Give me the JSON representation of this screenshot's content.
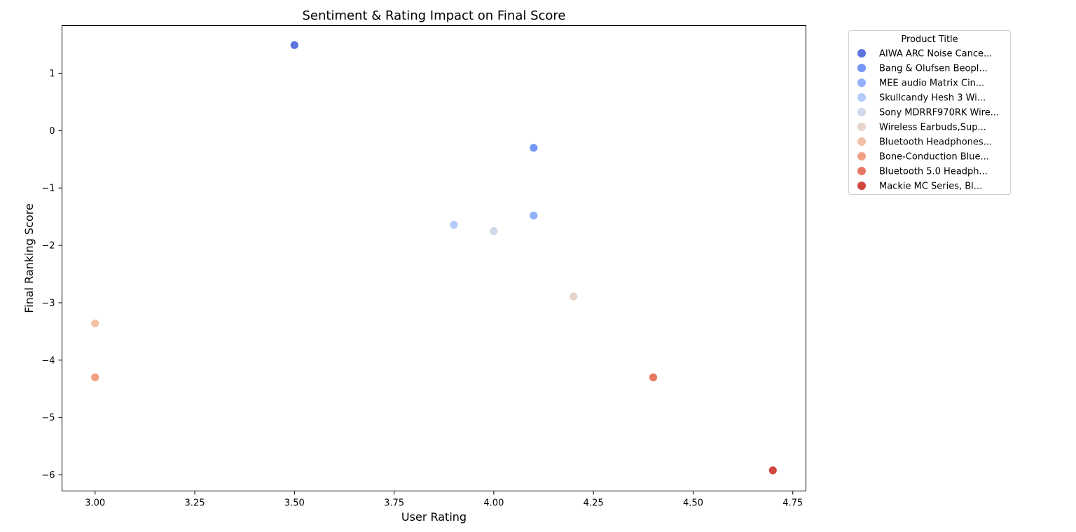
{
  "chart_data": {
    "type": "scatter",
    "title": "Sentiment & Rating Impact on Final Score",
    "xlabel": "User Rating",
    "ylabel": "Final Ranking Score",
    "xlim": [
      2.917,
      4.783
    ],
    "ylim": [
      -6.28,
      1.83
    ],
    "xticks": [
      3.0,
      3.25,
      3.5,
      3.75,
      4.0,
      4.25,
      4.5,
      4.75
    ],
    "xtick_labels": [
      "3.00",
      "3.25",
      "3.50",
      "3.75",
      "4.00",
      "4.25",
      "4.50",
      "4.75"
    ],
    "yticks": [
      1,
      0,
      -1,
      -2,
      -3,
      -4,
      -5,
      -6
    ],
    "ytick_labels": [
      "1",
      "0",
      "−1",
      "−2",
      "−3",
      "−4",
      "−5",
      "−6"
    ],
    "grid": false,
    "legend": {
      "title": "Product Title",
      "position": "outside-top-right"
    },
    "series": [
      {
        "name": "AIWA ARC Noise Cance...",
        "color": "#5a73df",
        "x": [
          3.5
        ],
        "y": [
          1.49
        ]
      },
      {
        "name": "Bang & Olufsen Beopl...",
        "color": "#7395f6",
        "x": [
          4.1
        ],
        "y": [
          -0.3
        ]
      },
      {
        "name": "MEE audio Matrix Cin...",
        "color": "#92b0fc",
        "x": [
          4.1
        ],
        "y": [
          -1.48
        ]
      },
      {
        "name": "Skullcandy Hesh 3 Wi...",
        "color": "#b3cbfb",
        "x": [
          3.9
        ],
        "y": [
          -1.64
        ]
      },
      {
        "name": "Sony MDRRF970RK Wire...",
        "color": "#cfd9ea",
        "x": [
          4.0
        ],
        "y": [
          -1.75
        ]
      },
      {
        "name": "Wireless Earbuds,Sup...",
        "color": "#e8d5ca",
        "x": [
          4.2
        ],
        "y": [
          -2.89
        ]
      },
      {
        "name": "Bluetooth Headphones...",
        "color": "#f3c1a5",
        "x": [
          3.0
        ],
        "y": [
          -3.36
        ]
      },
      {
        "name": "Bone-Conduction Blue...",
        "color": "#f2a083",
        "x": [
          3.0
        ],
        "y": [
          -4.3
        ]
      },
      {
        "name": "Bluetooth 5.0 Headph...",
        "color": "#e87863",
        "x": [
          4.4
        ],
        "y": [
          -4.3
        ]
      },
      {
        "name": "Mackie MC Series, Bl...",
        "color": "#d0473e",
        "x": [
          4.7
        ],
        "y": [
          -5.92
        ]
      }
    ]
  }
}
